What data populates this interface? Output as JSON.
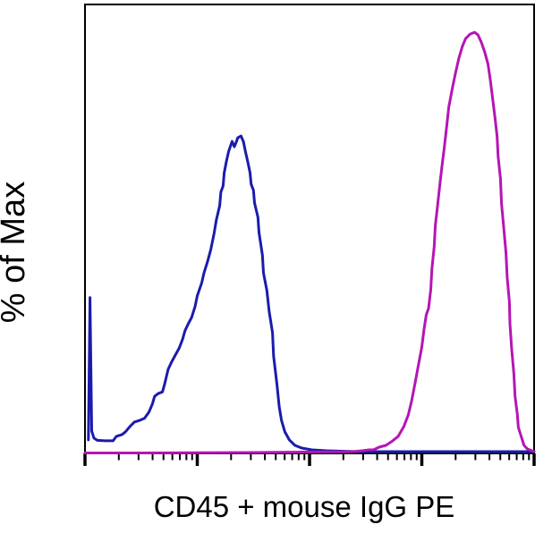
{
  "figure": {
    "background": "#ffffff",
    "frame_color": "#000000"
  },
  "chart_data": {
    "type": "line",
    "variant": "flow-cytometry-overlay-histogram",
    "title": "",
    "xlabel": "CD45 + mouse IgG PE",
    "ylabel": "% of Max",
    "grid": false,
    "legend": "none",
    "x_axis": {
      "scale": "log10",
      "decades": 4,
      "tick_labels_shown": false,
      "major_tick_decades": [
        0,
        1,
        2,
        3,
        4
      ],
      "minor_ticks_per_decade": [
        2,
        3,
        4,
        5,
        6,
        7,
        8,
        9
      ]
    },
    "y_axis": {
      "min": 0,
      "max": 100,
      "ticks_shown": false
    },
    "series": [
      {
        "name": "blue-histogram",
        "color": "#1b1bad",
        "stroke_width": 3,
        "points": [
          [
            0.03,
            3.0
          ],
          [
            0.045,
            34.7
          ],
          [
            0.06,
            5.0
          ],
          [
            0.08,
            3.4
          ],
          [
            0.11,
            2.9
          ],
          [
            0.18,
            2.8
          ],
          [
            0.25,
            2.8
          ],
          [
            0.28,
            3.8
          ],
          [
            0.33,
            4.2
          ],
          [
            0.36,
            4.8
          ],
          [
            0.4,
            6.0
          ],
          [
            0.44,
            7.0
          ],
          [
            0.49,
            7.4
          ],
          [
            0.53,
            7.8
          ],
          [
            0.57,
            9.2
          ],
          [
            0.6,
            11.0
          ],
          [
            0.62,
            12.7
          ],
          [
            0.65,
            13.3
          ],
          [
            0.69,
            13.7
          ],
          [
            0.71,
            15.5
          ],
          [
            0.74,
            18.7
          ],
          [
            0.77,
            20.3
          ],
          [
            0.8,
            21.7
          ],
          [
            0.84,
            23.5
          ],
          [
            0.87,
            25.5
          ],
          [
            0.89,
            27.3
          ],
          [
            0.92,
            28.9
          ],
          [
            0.95,
            30.3
          ],
          [
            0.98,
            32.7
          ],
          [
            1.0,
            35.1
          ],
          [
            1.04,
            38.0
          ],
          [
            1.06,
            40.2
          ],
          [
            1.09,
            42.6
          ],
          [
            1.12,
            45.4
          ],
          [
            1.15,
            49.0
          ],
          [
            1.17,
            52.0
          ],
          [
            1.2,
            55.2
          ],
          [
            1.21,
            58.2
          ],
          [
            1.23,
            59.6
          ],
          [
            1.24,
            62.5
          ],
          [
            1.26,
            65.1
          ],
          [
            1.28,
            67.3
          ],
          [
            1.31,
            69.5
          ],
          [
            1.32,
            68.9
          ],
          [
            1.33,
            68.3
          ],
          [
            1.35,
            69.5
          ],
          [
            1.36,
            70.3
          ],
          [
            1.39,
            70.7
          ],
          [
            1.41,
            69.5
          ],
          [
            1.43,
            67.1
          ],
          [
            1.45,
            64.9
          ],
          [
            1.47,
            62.5
          ],
          [
            1.48,
            60.0
          ],
          [
            1.5,
            58.6
          ],
          [
            1.51,
            55.8
          ],
          [
            1.54,
            52.6
          ],
          [
            1.55,
            49.2
          ],
          [
            1.58,
            44.2
          ],
          [
            1.59,
            40.2
          ],
          [
            1.62,
            36.3
          ],
          [
            1.64,
            31.7
          ],
          [
            1.67,
            26.9
          ],
          [
            1.68,
            21.7
          ],
          [
            1.71,
            15.3
          ],
          [
            1.73,
            10.4
          ],
          [
            1.75,
            7.4
          ],
          [
            1.78,
            4.8
          ],
          [
            1.82,
            3.0
          ],
          [
            1.87,
            1.8
          ],
          [
            1.93,
            1.2
          ],
          [
            2.02,
            0.8
          ],
          [
            2.15,
            0.6
          ],
          [
            2.43,
            0.4
          ],
          [
            3.2,
            0.4
          ],
          [
            4.0,
            0.4
          ]
        ]
      },
      {
        "name": "magenta-histogram",
        "color": "#b515b5",
        "stroke_width": 3,
        "points": [
          [
            0.0,
            0.1
          ],
          [
            0.5,
            0.1
          ],
          [
            1.0,
            0.15
          ],
          [
            1.5,
            0.2
          ],
          [
            1.95,
            0.3
          ],
          [
            2.39,
            0.4
          ],
          [
            2.47,
            0.6
          ],
          [
            2.53,
            0.8
          ],
          [
            2.57,
            0.8
          ],
          [
            2.62,
            1.4
          ],
          [
            2.68,
            1.8
          ],
          [
            2.73,
            2.6
          ],
          [
            2.79,
            3.8
          ],
          [
            2.84,
            6.0
          ],
          [
            2.88,
            8.6
          ],
          [
            2.91,
            11.8
          ],
          [
            2.94,
            15.7
          ],
          [
            2.97,
            19.7
          ],
          [
            3.0,
            23.7
          ],
          [
            3.02,
            27.7
          ],
          [
            3.04,
            30.9
          ],
          [
            3.06,
            32.3
          ],
          [
            3.08,
            36.5
          ],
          [
            3.09,
            41.2
          ],
          [
            3.11,
            46.0
          ],
          [
            3.12,
            50.8
          ],
          [
            3.14,
            55.2
          ],
          [
            3.16,
            59.8
          ],
          [
            3.18,
            64.1
          ],
          [
            3.2,
            68.1
          ],
          [
            3.22,
            72.5
          ],
          [
            3.24,
            77.1
          ],
          [
            3.27,
            81.1
          ],
          [
            3.3,
            84.7
          ],
          [
            3.33,
            88.0
          ],
          [
            3.36,
            90.6
          ],
          [
            3.39,
            92.4
          ],
          [
            3.43,
            93.4
          ],
          [
            3.47,
            93.8
          ],
          [
            3.5,
            93.2
          ],
          [
            3.53,
            91.6
          ],
          [
            3.56,
            89.4
          ],
          [
            3.59,
            86.7
          ],
          [
            3.61,
            83.1
          ],
          [
            3.63,
            79.1
          ],
          [
            3.65,
            75.1
          ],
          [
            3.67,
            70.7
          ],
          [
            3.68,
            66.1
          ],
          [
            3.7,
            61.2
          ],
          [
            3.71,
            55.6
          ],
          [
            3.73,
            50.2
          ],
          [
            3.75,
            44.6
          ],
          [
            3.76,
            39.2
          ],
          [
            3.78,
            33.7
          ],
          [
            3.785,
            28.9
          ],
          [
            3.8,
            23.3
          ],
          [
            3.82,
            17.7
          ],
          [
            3.83,
            12.7
          ],
          [
            3.85,
            8.8
          ],
          [
            3.86,
            5.8
          ],
          [
            3.89,
            3.4
          ],
          [
            3.91,
            1.8
          ],
          [
            3.94,
            1.0
          ],
          [
            3.98,
            0.6
          ],
          [
            4.0,
            0.4
          ]
        ]
      }
    ]
  }
}
